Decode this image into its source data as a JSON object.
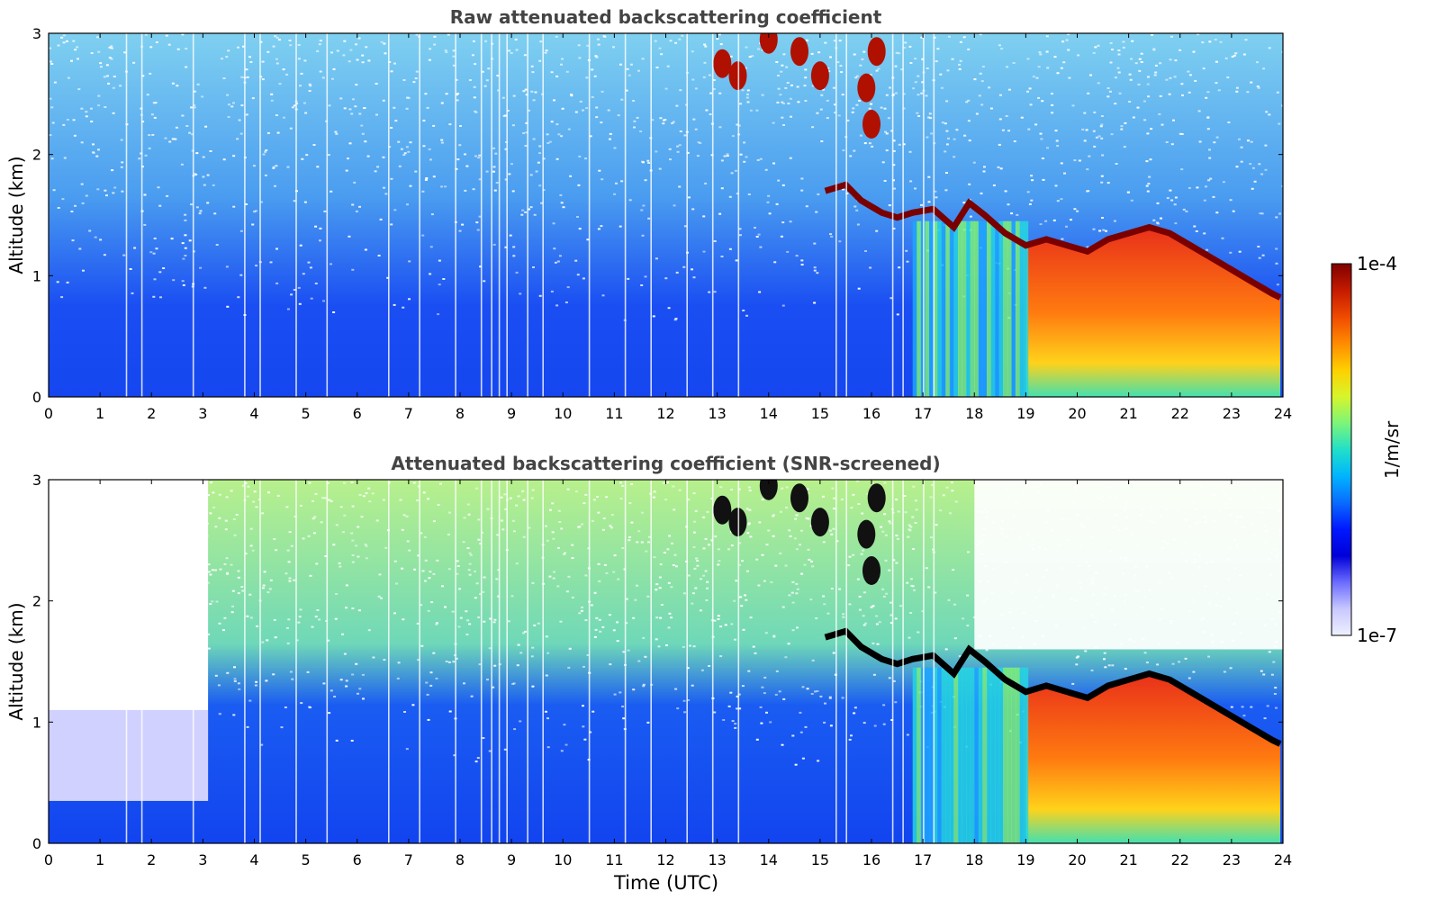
{
  "figure": {
    "xlabel": "Time (UTC)"
  },
  "colors": {
    "background": "#ffffff",
    "axis": "#000000",
    "title": "#444444",
    "noise_blue": "#1a44f0",
    "cloud_red": "#cc1b00",
    "cloud_top_dark": "#7a0000",
    "screened_cloud_top": "#000000"
  },
  "colorbar": {
    "label": "1/m/sr",
    "max_label": "1e-4",
    "min_label": "1e-7",
    "stops": [
      "#7f0000",
      "#c41a00",
      "#f04a00",
      "#ff8b00",
      "#ffd000",
      "#d7f52a",
      "#7cf57a",
      "#21e0c8",
      "#00b4ff",
      "#0a6bff",
      "#0018ff",
      "#0000d8",
      "#6b6bff",
      "#c8c8ff",
      "#eef0ff"
    ]
  },
  "chart_data": [
    {
      "type": "heatmap",
      "title": "Raw attenuated backscattering coefficient",
      "xlabel": "",
      "ylabel": "Altitude (km)",
      "xlim": [
        0,
        24
      ],
      "ylim": [
        0,
        3
      ],
      "xticks": [
        "0",
        "1",
        "2",
        "3",
        "4",
        "5",
        "6",
        "7",
        "8",
        "9",
        "10",
        "11",
        "12",
        "13",
        "14",
        "15",
        "16",
        "17",
        "18",
        "19",
        "20",
        "21",
        "22",
        "23",
        "24"
      ],
      "yticks": [
        "0",
        "1",
        "2",
        "3"
      ],
      "colorscale": "log",
      "value_range": [
        "1e-7",
        "1e-4"
      ],
      "cloud_base_km": [
        [
          15.1,
          1.7
        ],
        [
          15.5,
          1.75
        ],
        [
          15.8,
          1.62
        ],
        [
          16.2,
          1.52
        ],
        [
          16.5,
          1.48
        ],
        [
          16.8,
          1.52
        ],
        [
          17.2,
          1.55
        ],
        [
          17.6,
          1.4
        ],
        [
          17.9,
          1.6
        ],
        [
          18.2,
          1.5
        ],
        [
          18.6,
          1.35
        ],
        [
          19.0,
          1.25
        ],
        [
          19.4,
          1.3
        ],
        [
          19.8,
          1.25
        ],
        [
          20.2,
          1.2
        ],
        [
          20.6,
          1.3
        ],
        [
          21.0,
          1.35
        ],
        [
          21.4,
          1.4
        ],
        [
          21.8,
          1.35
        ],
        [
          22.2,
          1.25
        ],
        [
          22.6,
          1.15
        ],
        [
          23.0,
          1.05
        ],
        [
          23.4,
          0.95
        ],
        [
          23.8,
          0.85
        ],
        [
          23.95,
          0.82
        ]
      ],
      "features": {
        "noise_boundary_km": 0.7,
        "cloud_precip_start_utc": 19.0,
        "high_cloud_utc": [
          13.0,
          16.3
        ]
      }
    },
    {
      "type": "heatmap",
      "title": "Attenuated backscattering coefficient (SNR-screened)",
      "xlabel": "Time (UTC)",
      "ylabel": "Altitude (km)",
      "xlim": [
        0,
        24
      ],
      "ylim": [
        0,
        3
      ],
      "xticks": [
        "0",
        "1",
        "2",
        "3",
        "4",
        "5",
        "6",
        "7",
        "8",
        "9",
        "10",
        "11",
        "12",
        "13",
        "14",
        "15",
        "16",
        "17",
        "18",
        "19",
        "20",
        "21",
        "22",
        "23",
        "24"
      ],
      "yticks": [
        "0",
        "1",
        "2",
        "3"
      ],
      "colorscale": "log",
      "value_range": [
        "1e-7",
        "1e-4"
      ],
      "cloud_base_km": [
        [
          15.1,
          1.7
        ],
        [
          15.5,
          1.75
        ],
        [
          15.8,
          1.62
        ],
        [
          16.2,
          1.52
        ],
        [
          16.5,
          1.48
        ],
        [
          16.8,
          1.52
        ],
        [
          17.2,
          1.55
        ],
        [
          17.6,
          1.4
        ],
        [
          17.9,
          1.6
        ],
        [
          18.2,
          1.5
        ],
        [
          18.6,
          1.35
        ],
        [
          19.0,
          1.25
        ],
        [
          19.4,
          1.3
        ],
        [
          19.8,
          1.25
        ],
        [
          20.2,
          1.2
        ],
        [
          20.6,
          1.3
        ],
        [
          21.0,
          1.35
        ],
        [
          21.4,
          1.4
        ],
        [
          21.8,
          1.35
        ],
        [
          22.2,
          1.25
        ],
        [
          22.6,
          1.15
        ],
        [
          23.0,
          1.05
        ],
        [
          23.4,
          0.95
        ],
        [
          23.8,
          0.85
        ],
        [
          23.95,
          0.82
        ]
      ],
      "features": {
        "screened_floor_km": 0.35,
        "screened_floor_end_utc": 3.1,
        "cloud_precip_start_utc": 19.0,
        "high_cloud_utc": [
          13.0,
          16.3
        ]
      }
    }
  ]
}
